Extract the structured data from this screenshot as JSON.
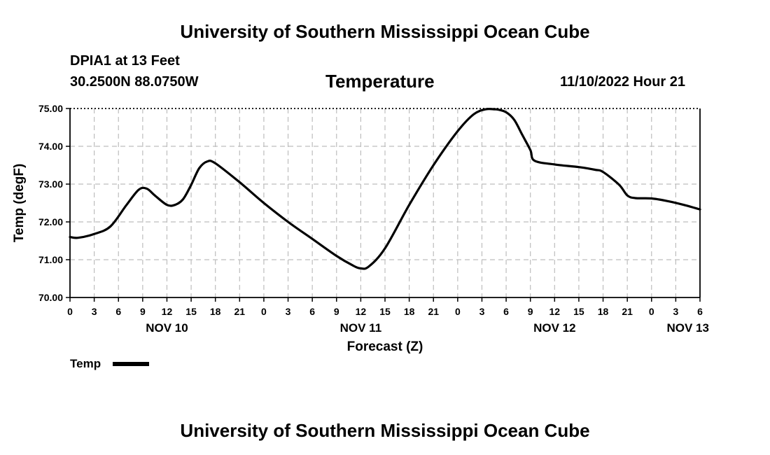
{
  "header": {
    "top_title": "University of Southern Mississippi Ocean Cube",
    "bottom_title": "University of Southern Mississippi Ocean Cube",
    "station_name": "DPIA1 at 13 Feet",
    "station_coords": "30.2500N  88.0750W",
    "chart_title": "Temperature",
    "datetime": "11/10/2022 Hour 21"
  },
  "legend": {
    "label": "Temp",
    "color": "#000000"
  },
  "chart_data": {
    "type": "line",
    "title": "Temperature",
    "xlabel": "Forecast (Z)",
    "ylabel": "Temp (degF)",
    "ylim": [
      70.0,
      75.0
    ],
    "yticks": [
      "70.00",
      "71.00",
      "72.00",
      "73.00",
      "74.00",
      "75.00"
    ],
    "xlim_hours": [
      0,
      78
    ],
    "xtick_step_hours": 3,
    "xtick_labels": [
      "0",
      "3",
      "6",
      "9",
      "12",
      "15",
      "18",
      "21",
      "0",
      "3",
      "6",
      "9",
      "12",
      "15",
      "18",
      "21",
      "0",
      "3",
      "6",
      "9",
      "12",
      "15",
      "18",
      "21",
      "0",
      "3",
      "6"
    ],
    "day_labels": [
      {
        "label": "NOV 10",
        "hour": 12
      },
      {
        "label": "NOV 11",
        "hour": 36
      },
      {
        "label": "NOV 12",
        "hour": 60
      },
      {
        "label": "NOV 13",
        "hour": 76.5
      }
    ],
    "grid": true,
    "series": [
      {
        "name": "Temp",
        "color": "#000000",
        "hours": [
          0,
          1,
          3,
          5,
          7,
          8.5,
          9.5,
          10.5,
          12,
          13,
          14,
          15,
          16,
          17,
          18,
          21,
          24,
          27,
          30,
          33,
          35,
          36,
          37,
          39,
          42,
          45,
          48,
          50,
          51.5,
          52.5,
          53,
          54,
          55,
          56,
          57,
          57.5,
          60,
          63,
          65,
          66,
          68,
          69,
          70,
          72,
          74,
          76,
          78
        ],
        "values": [
          71.6,
          71.58,
          71.68,
          71.88,
          72.45,
          72.85,
          72.88,
          72.7,
          72.45,
          72.45,
          72.6,
          72.98,
          73.42,
          73.6,
          73.55,
          73.05,
          72.5,
          72.0,
          71.55,
          71.1,
          70.85,
          70.77,
          70.82,
          71.3,
          72.45,
          73.5,
          74.4,
          74.85,
          74.98,
          74.98,
          74.97,
          74.9,
          74.7,
          74.3,
          73.9,
          73.62,
          73.52,
          73.45,
          73.38,
          73.32,
          72.98,
          72.7,
          72.63,
          72.62,
          72.55,
          72.45,
          72.33
        ]
      }
    ]
  }
}
